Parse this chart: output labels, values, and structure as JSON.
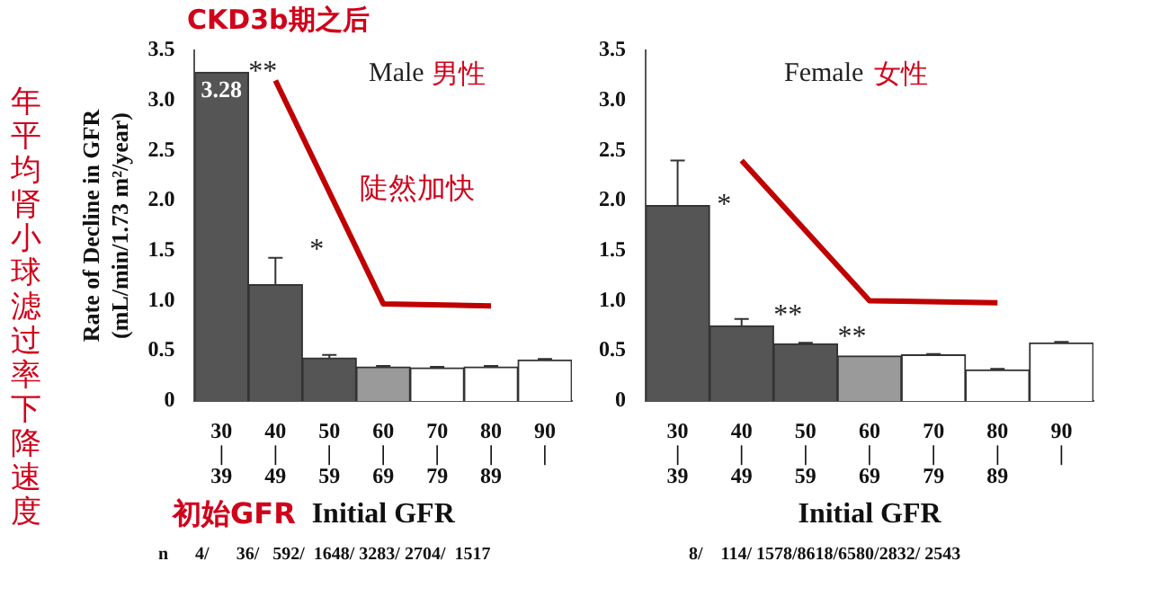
{
  "chart_data": [
    {
      "type": "bar",
      "title": "Male",
      "ylabel": "Rate of Decline in GFR\n(mL/min/1.73 m²/year)",
      "xlabel": "Initial GFR",
      "categories": [
        "30 | 39",
        "40 | 49",
        "50 | 59",
        "60 | 69",
        "70 | 79",
        "80 | 89",
        "90 |"
      ],
      "series": [
        {
          "colors": [
            "#555555",
            "#555555",
            "#555555",
            "#9a9a9a",
            "#ffffff",
            "#ffffff",
            "#ffffff"
          ],
          "values": [
            3.28,
            1.16,
            0.43,
            0.34,
            0.33,
            0.34,
            0.41
          ],
          "errors": [
            null,
            [
              1.16,
              1.43
            ],
            [
              0.43,
              0.46
            ],
            [
              0.34,
              0.35
            ],
            [
              0.33,
              0.34
            ],
            [
              0.34,
              0.35
            ],
            [
              0.41,
              0.42
            ]
          ],
          "value_labels": [
            "3.28",
            null,
            null,
            null,
            null,
            null,
            null
          ]
        },
        {
          "type": "line",
          "color": "#c00000",
          "values": [
            null,
            3.2,
            null,
            0.97,
            null,
            0.95,
            null
          ]
        }
      ],
      "ylim": [
        0,
        3.5
      ],
      "yticks": [
        0,
        0.5,
        {
          "value": 1,
          "label": "1.0"
        },
        1.5,
        {
          "value": 2,
          "label": "2.0"
        },
        2.5,
        {
          "value": 3,
          "label": "3.0"
        },
        3.5
      ],
      "annotations": [
        {
          "text": "**",
          "x": "30 | 39",
          "y": 3.28
        },
        {
          "text": "*",
          "x": "40 | 49",
          "y": 1.5
        },
        "CKD3b期之后",
        "男性",
        "陡然加快",
        "年平均肾小球滤过率下降速度",
        "初始GFR",
        "n      4/      36/   592/  1648/ 3283/ 2704/  1517"
      ]
    },
    {
      "type": "bar",
      "title": "Female",
      "xlabel": "Initial GFR",
      "categories": [
        "30 | 39",
        "40 | 49",
        "50 | 59",
        "60 | 69",
        "70 | 79",
        "80 | 89",
        "90 |"
      ],
      "series": [
        {
          "colors": [
            "#555555",
            "#555555",
            "#555555",
            "#9a9a9a",
            "#ffffff",
            "#ffffff",
            "#ffffff"
          ],
          "values": [
            1.95,
            0.75,
            0.57,
            0.45,
            0.46,
            0.31,
            0.58
          ],
          "errors": [
            [
              1.95,
              2.4
            ],
            [
              0.75,
              0.82
            ],
            [
              0.57,
              0.58
            ],
            null,
            [
              0.46,
              0.47
            ],
            [
              0.31,
              0.32
            ],
            [
              0.58,
              0.59
            ]
          ]
        },
        {
          "type": "line",
          "color": "#c00000",
          "values": [
            null,
            2.4,
            null,
            1.0,
            null,
            0.98,
            null
          ]
        }
      ],
      "ylim": [
        0,
        3.5
      ],
      "yticks": [
        0,
        0.5,
        {
          "value": 1,
          "label": "1.0"
        },
        1.5,
        {
          "value": 2,
          "label": "2.0"
        },
        2.5,
        {
          "value": 3,
          "label": "3.0"
        },
        3.5
      ],
      "annotations": [
        {
          "text": "*",
          "x": "30 | 39",
          "y": 1.95
        },
        {
          "text": "**",
          "x": "40 | 49",
          "y": 0.85
        },
        {
          "text": "**",
          "x": "50 | 59",
          "y": 0.63
        },
        "女性",
        "8/    114/ 1578/8618/6580/2832/ 2543"
      ]
    }
  ]
}
